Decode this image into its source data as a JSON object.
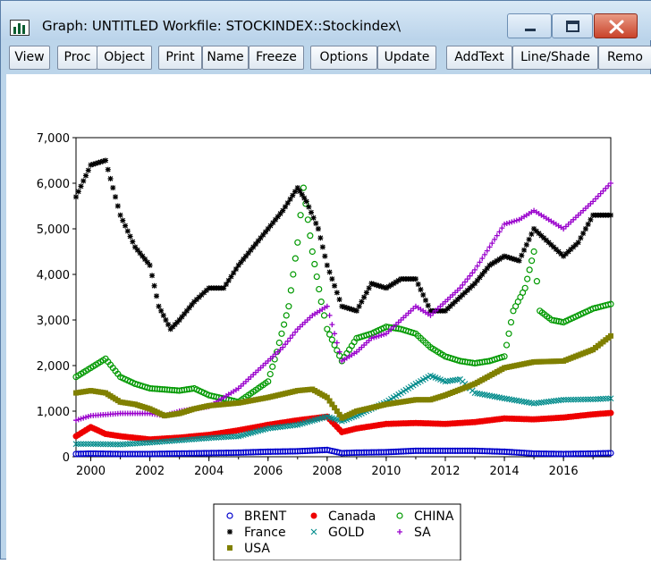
{
  "window": {
    "title": "Graph: UNTITLED   Workfile: STOCKINDEX::Stockindex\\",
    "icon": "graph-icon",
    "controls": [
      "minimize-icon",
      "maximize-icon",
      "close-icon"
    ]
  },
  "toolbar": {
    "view": "View",
    "proc": "Proc",
    "object": "Object",
    "print": "Print",
    "name": "Name",
    "freeze": "Freeze",
    "options": "Options",
    "update": "Update",
    "addtext": "AddText",
    "lineshade": "Line/Shade",
    "remove": "Remo"
  },
  "chart_data": {
    "type": "scatter",
    "title": "",
    "xlabel": "",
    "ylabel": "",
    "xlim": [
      1999.5,
      2017.6
    ],
    "ylim": [
      0,
      7000
    ],
    "yticks": [
      "0",
      "1,000",
      "2,000",
      "3,000",
      "4,000",
      "5,000",
      "6,000",
      "7,000"
    ],
    "xticks": [
      "2000",
      "2002",
      "2004",
      "2006",
      "2008",
      "2010",
      "2012",
      "2014",
      "2016"
    ],
    "grid": false,
    "legend_position": "bottom-center",
    "series": [
      {
        "name": "BRENT",
        "marker": "circle-open",
        "color": "#0000cc",
        "points": [
          [
            1999.5,
            60
          ],
          [
            2000,
            70
          ],
          [
            2001,
            60
          ],
          [
            2002,
            60
          ],
          [
            2003,
            70
          ],
          [
            2004,
            80
          ],
          [
            2005,
            90
          ],
          [
            2006,
            110
          ],
          [
            2007,
            120
          ],
          [
            2008,
            150
          ],
          [
            2008.5,
            80
          ],
          [
            2009,
            90
          ],
          [
            2010,
            100
          ],
          [
            2011,
            130
          ],
          [
            2012,
            130
          ],
          [
            2013,
            130
          ],
          [
            2014,
            110
          ],
          [
            2015,
            70
          ],
          [
            2016,
            60
          ],
          [
            2017,
            70
          ],
          [
            2017.6,
            80
          ]
        ]
      },
      {
        "name": "Canada",
        "marker": "dot",
        "color": "#ee0000",
        "points": [
          [
            1999.5,
            450
          ],
          [
            2000,
            650
          ],
          [
            2000.5,
            500
          ],
          [
            2001,
            450
          ],
          [
            2002,
            380
          ],
          [
            2003,
            420
          ],
          [
            2004,
            480
          ],
          [
            2005,
            580
          ],
          [
            2006,
            700
          ],
          [
            2007,
            800
          ],
          [
            2008,
            880
          ],
          [
            2008.5,
            540
          ],
          [
            2009,
            620
          ],
          [
            2010,
            720
          ],
          [
            2011,
            740
          ],
          [
            2012,
            720
          ],
          [
            2013,
            760
          ],
          [
            2014,
            840
          ],
          [
            2015,
            820
          ],
          [
            2016,
            860
          ],
          [
            2017,
            930
          ],
          [
            2017.6,
            960
          ]
        ]
      },
      {
        "name": "CHINA",
        "marker": "circle-open",
        "color": "#009900",
        "points": [
          [
            1999.5,
            1750
          ],
          [
            2000,
            1950
          ],
          [
            2000.5,
            2150
          ],
          [
            2001,
            1750
          ],
          [
            2001.5,
            1600
          ],
          [
            2002,
            1500
          ],
          [
            2003,
            1450
          ],
          [
            2003.5,
            1500
          ],
          [
            2004,
            1350
          ],
          [
            2005,
            1200
          ],
          [
            2006,
            1650
          ],
          [
            2006.3,
            2300
          ],
          [
            2006.7,
            3300
          ],
          [
            2007,
            4700
          ],
          [
            2007.2,
            5900
          ],
          [
            2007.5,
            4500
          ],
          [
            2007.8,
            3400
          ],
          [
            2008,
            2800
          ],
          [
            2008.5,
            2100
          ],
          [
            2009,
            2600
          ],
          [
            2009.5,
            2700
          ],
          [
            2010,
            2850
          ],
          [
            2010.5,
            2800
          ],
          [
            2011,
            2700
          ],
          [
            2011.5,
            2400
          ],
          [
            2012,
            2200
          ],
          [
            2012.5,
            2100
          ],
          [
            2013,
            2050
          ],
          [
            2013.5,
            2100
          ],
          [
            2014,
            2200
          ],
          [
            2014.3,
            3200
          ],
          [
            2014.7,
            3700
          ],
          [
            2015,
            4500
          ],
          [
            2015.2,
            3200
          ],
          [
            2015.6,
            3000
          ],
          [
            2016,
            2950
          ],
          [
            2016.5,
            3100
          ],
          [
            2017,
            3250
          ],
          [
            2017.6,
            3350
          ]
        ]
      },
      {
        "name": "France",
        "marker": "star",
        "color": "#000000",
        "points": [
          [
            1999.5,
            5700
          ],
          [
            2000,
            6400
          ],
          [
            2000.5,
            6500
          ],
          [
            2001,
            5300
          ],
          [
            2001.5,
            4600
          ],
          [
            2002,
            4200
          ],
          [
            2002.3,
            3300
          ],
          [
            2002.7,
            2800
          ],
          [
            2003,
            3000
          ],
          [
            2003.5,
            3400
          ],
          [
            2004,
            3700
          ],
          [
            2004.5,
            3700
          ],
          [
            2005,
            4200
          ],
          [
            2005.5,
            4600
          ],
          [
            2006,
            5000
          ],
          [
            2006.5,
            5400
          ],
          [
            2007,
            5900
          ],
          [
            2007.3,
            5600
          ],
          [
            2007.7,
            5000
          ],
          [
            2008,
            4200
          ],
          [
            2008.5,
            3300
          ],
          [
            2009,
            3200
          ],
          [
            2009.5,
            3800
          ],
          [
            2010,
            3700
          ],
          [
            2010.5,
            3900
          ],
          [
            2011,
            3900
          ],
          [
            2011.5,
            3200
          ],
          [
            2012,
            3200
          ],
          [
            2012.5,
            3500
          ],
          [
            2013,
            3800
          ],
          [
            2013.5,
            4200
          ],
          [
            2014,
            4400
          ],
          [
            2014.5,
            4300
          ],
          [
            2015,
            5000
          ],
          [
            2015.5,
            4700
          ],
          [
            2016,
            4400
          ],
          [
            2016.5,
            4700
          ],
          [
            2017,
            5300
          ],
          [
            2017.6,
            5300
          ]
        ]
      },
      {
        "name": "GOLD",
        "marker": "x",
        "color": "#008b8b",
        "points": [
          [
            1999.5,
            280
          ],
          [
            2000,
            280
          ],
          [
            2001,
            270
          ],
          [
            2002,
            310
          ],
          [
            2003,
            360
          ],
          [
            2004,
            410
          ],
          [
            2005,
            450
          ],
          [
            2006,
            620
          ],
          [
            2007,
            700
          ],
          [
            2008,
            880
          ],
          [
            2008.5,
            780
          ],
          [
            2009,
            900
          ],
          [
            2010,
            1200
          ],
          [
            2011,
            1600
          ],
          [
            2011.5,
            1780
          ],
          [
            2012,
            1650
          ],
          [
            2012.5,
            1700
          ],
          [
            2013,
            1400
          ],
          [
            2014,
            1280
          ],
          [
            2015,
            1170
          ],
          [
            2016,
            1250
          ],
          [
            2017,
            1260
          ],
          [
            2017.6,
            1280
          ]
        ]
      },
      {
        "name": "SA",
        "marker": "plus",
        "color": "#9900cc",
        "points": [
          [
            1999.5,
            800
          ],
          [
            2000,
            900
          ],
          [
            2001,
            950
          ],
          [
            2002,
            950
          ],
          [
            2002.5,
            900
          ],
          [
            2003,
            1000
          ],
          [
            2004,
            1100
          ],
          [
            2004.5,
            1300
          ],
          [
            2005,
            1500
          ],
          [
            2005.5,
            1800
          ],
          [
            2006,
            2100
          ],
          [
            2006.5,
            2400
          ],
          [
            2007,
            2800
          ],
          [
            2007.5,
            3100
          ],
          [
            2008,
            3300
          ],
          [
            2008.5,
            2100
          ],
          [
            2009,
            2300
          ],
          [
            2009.5,
            2600
          ],
          [
            2010,
            2700
          ],
          [
            2010.5,
            3000
          ],
          [
            2011,
            3300
          ],
          [
            2011.5,
            3100
          ],
          [
            2012,
            3400
          ],
          [
            2012.5,
            3700
          ],
          [
            2013,
            4100
          ],
          [
            2013.5,
            4600
          ],
          [
            2014,
            5100
          ],
          [
            2014.5,
            5200
          ],
          [
            2015,
            5400
          ],
          [
            2015.5,
            5200
          ],
          [
            2016,
            5000
          ],
          [
            2016.5,
            5300
          ],
          [
            2017,
            5600
          ],
          [
            2017.6,
            6000
          ]
        ]
      },
      {
        "name": "USA",
        "marker": "square",
        "color": "#808000",
        "points": [
          [
            1999.5,
            1400
          ],
          [
            2000,
            1450
          ],
          [
            2000.5,
            1400
          ],
          [
            2001,
            1200
          ],
          [
            2001.5,
            1150
          ],
          [
            2002,
            1050
          ],
          [
            2002.5,
            900
          ],
          [
            2003,
            950
          ],
          [
            2003.5,
            1050
          ],
          [
            2004,
            1120
          ],
          [
            2005,
            1180
          ],
          [
            2006,
            1300
          ],
          [
            2007,
            1450
          ],
          [
            2007.5,
            1480
          ],
          [
            2008,
            1300
          ],
          [
            2008.5,
            850
          ],
          [
            2009,
            1000
          ],
          [
            2010,
            1150
          ],
          [
            2011,
            1250
          ],
          [
            2011.5,
            1250
          ],
          [
            2012,
            1350
          ],
          [
            2013,
            1600
          ],
          [
            2014,
            1950
          ],
          [
            2015,
            2080
          ],
          [
            2016,
            2100
          ],
          [
            2017,
            2350
          ],
          [
            2017.6,
            2650
          ]
        ]
      }
    ]
  }
}
